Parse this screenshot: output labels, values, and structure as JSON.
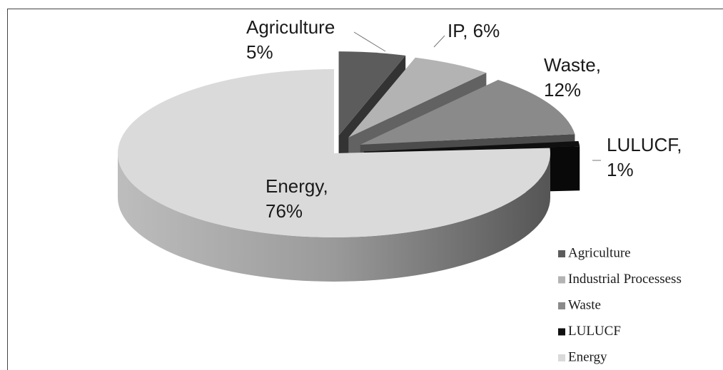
{
  "chart_data": {
    "type": "pie3d",
    "categories": [
      "Agriculture",
      "Industrial Processess",
      "Waste",
      "LULUCF",
      "Energy"
    ],
    "values": [
      5,
      6,
      12,
      1,
      76
    ],
    "value_labels": [
      [
        "Agriculture",
        "5%"
      ],
      [
        "IP, 6%"
      ],
      [
        "Waste,",
        "12%"
      ],
      [
        "LULUCF,",
        "1%"
      ],
      [
        "Energy,",
        "76%"
      ]
    ],
    "colors": [
      "#5c5c5c",
      "#b3b3b3",
      "#8a8a8a",
      "#101010",
      "#dadada"
    ],
    "legend": "right"
  }
}
